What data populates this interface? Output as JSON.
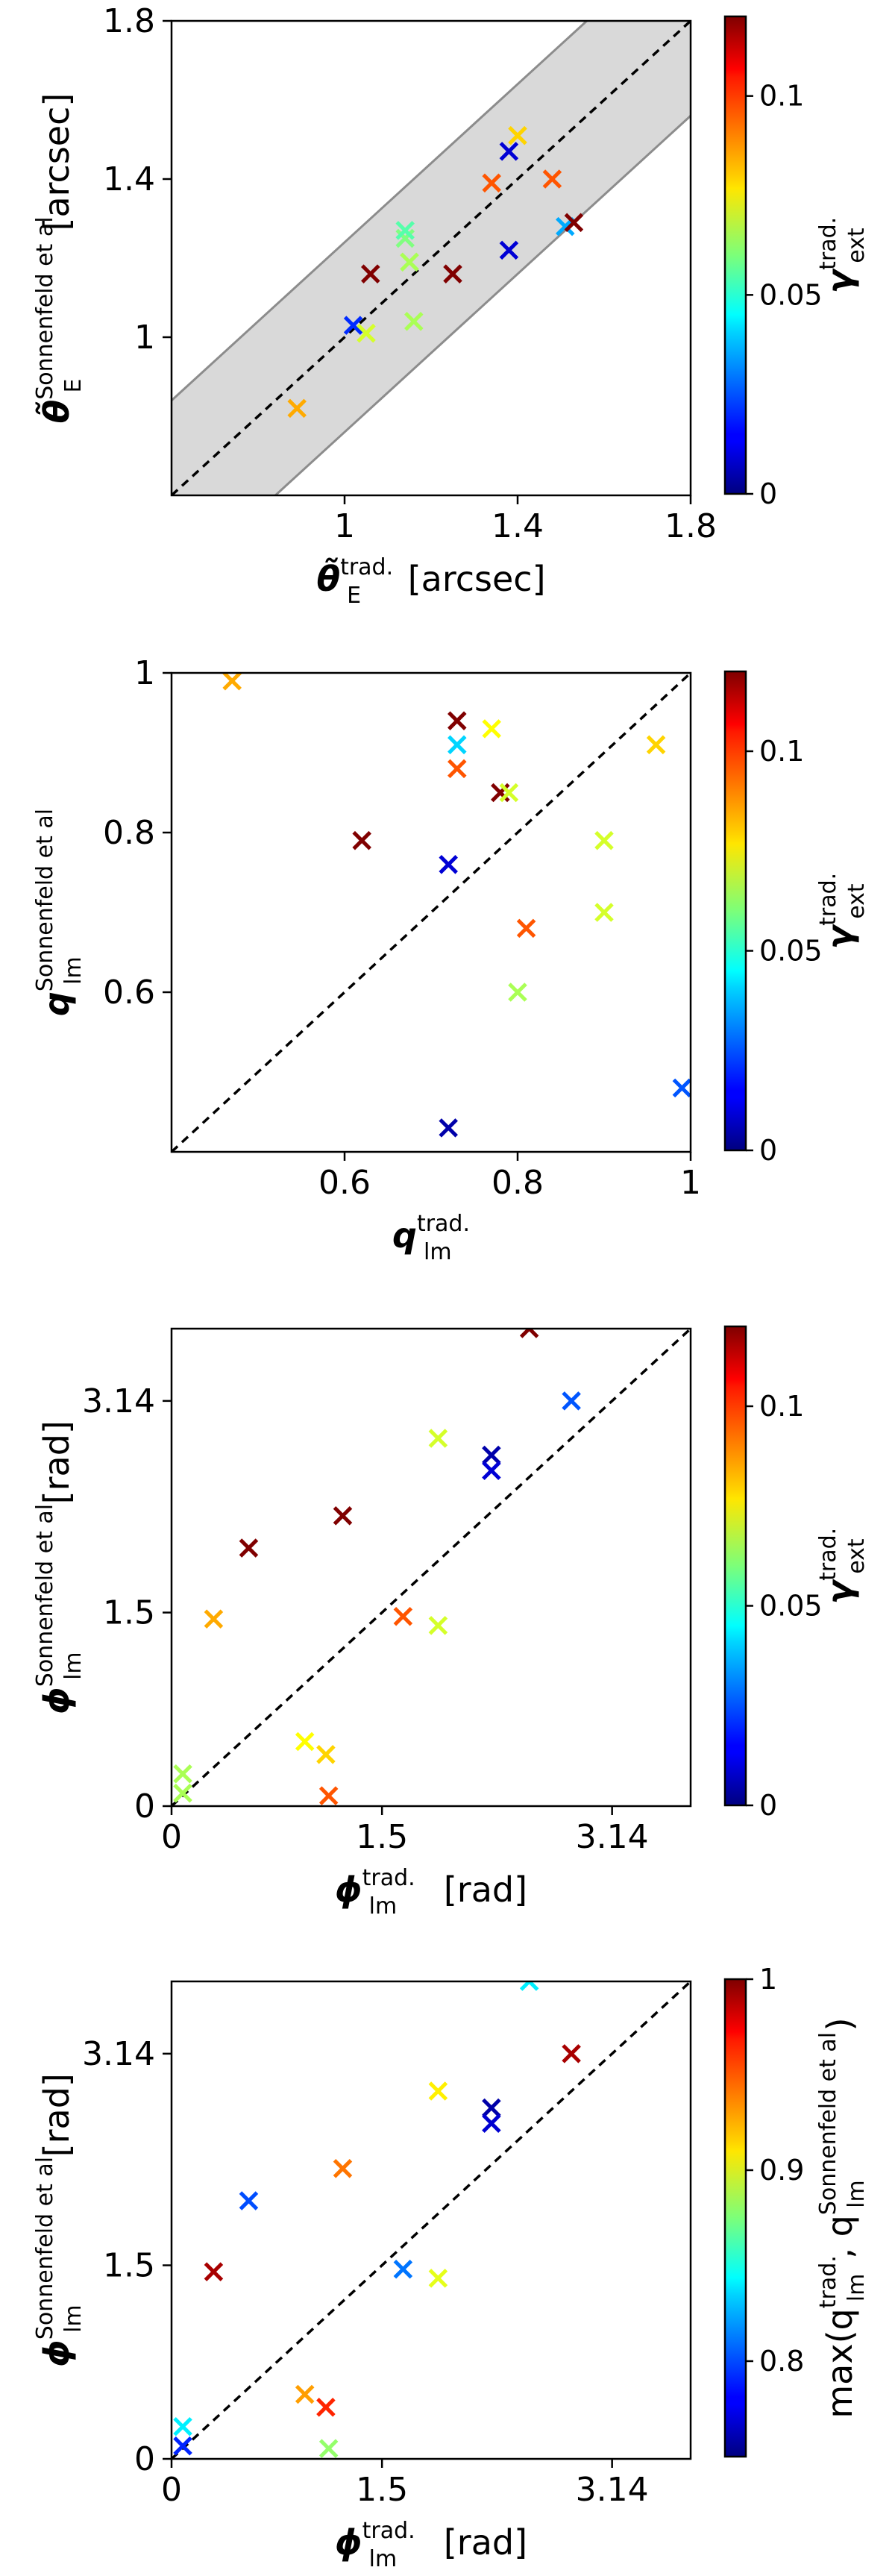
{
  "chart_data": [
    {
      "type": "scatter",
      "marker": "x",
      "x": {
        "label": "θ̃",
        "sub": "E",
        "sup": "trad.",
        "unit": "[arcsec]",
        "lim": [
          0.6,
          1.8
        ],
        "ticks": [
          1,
          1.4,
          1.8
        ],
        "tick_labels": [
          "1",
          "1.4",
          "1.8"
        ]
      },
      "y": {
        "label": "θ̃",
        "sub": "E",
        "sup": "Sonnenfeld et al",
        "unit": "[arcsec]",
        "lim": [
          0.6,
          1.8
        ],
        "ticks": [
          1,
          1.4,
          1.8
        ],
        "tick_labels": [
          "1",
          "1.4",
          "1.8"
        ]
      },
      "colorbar": {
        "label": "γ",
        "sub": "ext",
        "sup": "trad.",
        "lim": [
          0,
          0.12
        ],
        "ticks": [
          0,
          0.05,
          0.1
        ],
        "tick_labels": [
          "0",
          "0.05",
          "0.1"
        ]
      },
      "reference": {
        "diagonal": true,
        "band_halfwidth": 0.24
      },
      "points": [
        {
          "x": 0.89,
          "y": 0.82,
          "c": 0.085
        },
        {
          "x": 1.02,
          "y": 1.03,
          "c": 0.02
        },
        {
          "x": 1.05,
          "y": 1.01,
          "c": 0.07
        },
        {
          "x": 1.06,
          "y": 1.16,
          "c": 0.12
        },
        {
          "x": 1.14,
          "y": 1.25,
          "c": 0.06
        },
        {
          "x": 1.14,
          "y": 1.27,
          "c": 0.055
        },
        {
          "x": 1.15,
          "y": 1.19,
          "c": 0.065
        },
        {
          "x": 1.16,
          "y": 1.04,
          "c": 0.065
        },
        {
          "x": 1.25,
          "y": 1.16,
          "c": 0.12
        },
        {
          "x": 1.34,
          "y": 1.39,
          "c": 0.095
        },
        {
          "x": 1.38,
          "y": 1.47,
          "c": 0.01
        },
        {
          "x": 1.38,
          "y": 1.22,
          "c": 0.01
        },
        {
          "x": 1.4,
          "y": 1.51,
          "c": 0.08
        },
        {
          "x": 1.48,
          "y": 1.4,
          "c": 0.095
        },
        {
          "x": 1.51,
          "y": 1.28,
          "c": 0.035
        },
        {
          "x": 1.53,
          "y": 1.29,
          "c": 0.12
        }
      ]
    },
    {
      "type": "scatter",
      "marker": "x",
      "x": {
        "label": "q",
        "sub": "lm",
        "sup": "trad.",
        "unit": "",
        "lim": [
          0.4,
          1.0
        ],
        "ticks": [
          0.6,
          0.8,
          1.0
        ],
        "tick_labels": [
          "0.6",
          "0.8",
          "1"
        ]
      },
      "y": {
        "label": "q",
        "sub": "lm",
        "sup": "Sonnenfeld et al",
        "unit": "",
        "lim": [
          0.4,
          1.0
        ],
        "ticks": [
          0.6,
          0.8,
          1.0
        ],
        "tick_labels": [
          "0.6",
          "0.8",
          "1"
        ]
      },
      "colorbar": {
        "label": "γ",
        "sub": "ext",
        "sup": "trad.",
        "lim": [
          0,
          0.12
        ],
        "ticks": [
          0,
          0.05,
          0.1
        ],
        "tick_labels": [
          "0",
          "0.05",
          "0.1"
        ]
      },
      "reference": {
        "diagonal": true
      },
      "points": [
        {
          "x": 0.47,
          "y": 0.99,
          "c": 0.085
        },
        {
          "x": 0.62,
          "y": 0.79,
          "c": 0.12
        },
        {
          "x": 0.72,
          "y": 0.76,
          "c": 0.01
        },
        {
          "x": 0.72,
          "y": 0.43,
          "c": 0.005
        },
        {
          "x": 0.73,
          "y": 0.94,
          "c": 0.12
        },
        {
          "x": 0.73,
          "y": 0.91,
          "c": 0.04
        },
        {
          "x": 0.73,
          "y": 0.88,
          "c": 0.095
        },
        {
          "x": 0.77,
          "y": 0.93,
          "c": 0.075
        },
        {
          "x": 0.78,
          "y": 0.85,
          "c": 0.12
        },
        {
          "x": 0.79,
          "y": 0.85,
          "c": 0.07
        },
        {
          "x": 0.8,
          "y": 0.6,
          "c": 0.065
        },
        {
          "x": 0.81,
          "y": 0.68,
          "c": 0.095
        },
        {
          "x": 0.9,
          "y": 0.79,
          "c": 0.07
        },
        {
          "x": 0.9,
          "y": 0.7,
          "c": 0.07
        },
        {
          "x": 0.96,
          "y": 0.91,
          "c": 0.08
        },
        {
          "x": 0.99,
          "y": 0.48,
          "c": 0.025
        }
      ]
    },
    {
      "type": "scatter",
      "marker": "x",
      "x": {
        "label": "ϕ",
        "sub": "lm",
        "sup": "trad.",
        "unit": "[rad]",
        "lim": [
          0,
          3.7
        ],
        "ticks": [
          0,
          1.5,
          3.14
        ],
        "tick_labels": [
          "0",
          "1.5",
          "3.14"
        ]
      },
      "y": {
        "label": "ϕ",
        "sub": "lm",
        "sup": "Sonnenfeld et al",
        "unit": "[rad]",
        "lim": [
          0,
          3.7
        ],
        "ticks": [
          0,
          1.5,
          3.14
        ],
        "tick_labels": [
          "0",
          "1.5",
          "3.14"
        ]
      },
      "colorbar": {
        "label": "γ",
        "sub": "ext",
        "sup": "trad.",
        "lim": [
          0,
          0.12
        ],
        "ticks": [
          0,
          0.05,
          0.1
        ],
        "tick_labels": [
          "0",
          "0.05",
          "0.1"
        ]
      },
      "reference": {
        "diagonal": true
      },
      "points": [
        {
          "x": 0.08,
          "y": 0.25,
          "c": 0.065
        },
        {
          "x": 0.08,
          "y": 0.1,
          "c": 0.065
        },
        {
          "x": 0.3,
          "y": 1.45,
          "c": 0.085
        },
        {
          "x": 0.55,
          "y": 2.0,
          "c": 0.12
        },
        {
          "x": 0.95,
          "y": 0.5,
          "c": 0.075
        },
        {
          "x": 1.1,
          "y": 0.4,
          "c": 0.08
        },
        {
          "x": 1.12,
          "y": 0.08,
          "c": 0.095
        },
        {
          "x": 1.22,
          "y": 2.25,
          "c": 0.12
        },
        {
          "x": 1.65,
          "y": 1.47,
          "c": 0.095
        },
        {
          "x": 1.9,
          "y": 2.85,
          "c": 0.07
        },
        {
          "x": 1.9,
          "y": 1.4,
          "c": 0.07
        },
        {
          "x": 2.28,
          "y": 2.72,
          "c": 0.005
        },
        {
          "x": 2.28,
          "y": 2.6,
          "c": 0.01
        },
        {
          "x": 2.55,
          "y": 3.7,
          "c": 0.12
        },
        {
          "x": 2.85,
          "y": 3.14,
          "c": 0.025
        }
      ]
    },
    {
      "type": "scatter",
      "marker": "x",
      "x": {
        "label": "ϕ",
        "sub": "lm",
        "sup": "trad.",
        "unit": "[rad]",
        "lim": [
          0,
          3.7
        ],
        "ticks": [
          0,
          1.5,
          3.14
        ],
        "tick_labels": [
          "0",
          "1.5",
          "3.14"
        ]
      },
      "y": {
        "label": "ϕ",
        "sub": "lm",
        "sup": "Sonnenfeld et al",
        "unit": "[rad]",
        "lim": [
          0,
          3.7
        ],
        "ticks": [
          0,
          1.5,
          3.14
        ],
        "tick_labels": [
          "0",
          "1.5",
          "3.14"
        ]
      },
      "colorbar": {
        "label_text": "max(q",
        "sub": "lm",
        "sup1": "trad.",
        "mid": ", q",
        "sup2": "Sonnenfeld et al",
        "end": ")",
        "lim": [
          0.75,
          1.0
        ],
        "ticks": [
          0.8,
          0.9,
          1.0
        ],
        "tick_labels": [
          "0.8",
          "0.9",
          "1"
        ]
      },
      "reference": {
        "diagonal": true
      },
      "points": [
        {
          "x": 0.08,
          "y": 0.25,
          "c": 0.84
        },
        {
          "x": 0.08,
          "y": 0.1,
          "c": 0.79
        },
        {
          "x": 0.3,
          "y": 1.45,
          "c": 0.99
        },
        {
          "x": 0.55,
          "y": 2.0,
          "c": 0.8
        },
        {
          "x": 0.95,
          "y": 0.5,
          "c": 0.93
        },
        {
          "x": 1.1,
          "y": 0.4,
          "c": 0.96
        },
        {
          "x": 1.12,
          "y": 0.08,
          "c": 0.88
        },
        {
          "x": 1.22,
          "y": 2.25,
          "c": 0.94
        },
        {
          "x": 1.65,
          "y": 1.47,
          "c": 0.81
        },
        {
          "x": 1.9,
          "y": 2.85,
          "c": 0.91
        },
        {
          "x": 1.9,
          "y": 1.4,
          "c": 0.9
        },
        {
          "x": 2.28,
          "y": 2.72,
          "c": 0.76
        },
        {
          "x": 2.28,
          "y": 2.6,
          "c": 0.77
        },
        {
          "x": 2.55,
          "y": 3.7,
          "c": 0.84
        },
        {
          "x": 2.85,
          "y": 3.14,
          "c": 0.99
        }
      ]
    }
  ]
}
